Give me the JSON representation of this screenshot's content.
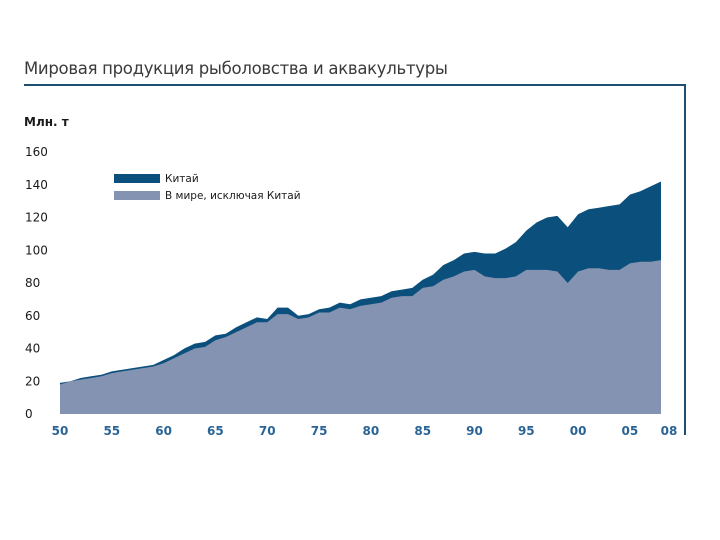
{
  "colors": {
    "china": "#0b4f7c",
    "world_ex_china": "#8593b2",
    "rule": "#1d4f73",
    "xtick": "#2a6496"
  },
  "chart_data": {
    "type": "area",
    "stacked": true,
    "title": "Мировая продукция рыболовства и аквакультуры",
    "ylabel": "Млн. т",
    "ylim": [
      0,
      160
    ],
    "xlim": [
      1950,
      2008
    ],
    "yticks": [
      "0",
      "20",
      "40",
      "60",
      "80",
      "100",
      "120",
      "140",
      "160"
    ],
    "xticks": [
      {
        "year": 1950,
        "label": "50"
      },
      {
        "year": 1955,
        "label": "55"
      },
      {
        "year": 1960,
        "label": "60"
      },
      {
        "year": 1965,
        "label": "65"
      },
      {
        "year": 1970,
        "label": "70"
      },
      {
        "year": 1975,
        "label": "75"
      },
      {
        "year": 1980,
        "label": "80"
      },
      {
        "year": 1985,
        "label": "85"
      },
      {
        "year": 1990,
        "label": "90"
      },
      {
        "year": 1995,
        "label": "95"
      },
      {
        "year": 2000,
        "label": "00"
      },
      {
        "year": 2005,
        "label": "05"
      },
      {
        "year": 2008,
        "label": "08"
      }
    ],
    "grid": false,
    "legend_position": "top-left",
    "x": [
      1950,
      1951,
      1952,
      1953,
      1954,
      1955,
      1956,
      1957,
      1958,
      1959,
      1960,
      1961,
      1962,
      1963,
      1964,
      1965,
      1966,
      1967,
      1968,
      1969,
      1970,
      1971,
      1972,
      1973,
      1974,
      1975,
      1976,
      1977,
      1978,
      1979,
      1980,
      1981,
      1982,
      1983,
      1984,
      1985,
      1986,
      1987,
      1988,
      1989,
      1990,
      1991,
      1992,
      1993,
      1994,
      1995,
      1996,
      1997,
      1998,
      1999,
      2000,
      2001,
      2002,
      2003,
      2004,
      2005,
      2006,
      2007,
      2008
    ],
    "series": [
      {
        "name": "В мире, исключая Китай",
        "color_key": "world_ex_china",
        "values": [
          18,
          20,
          21,
          22,
          23,
          25,
          26,
          27,
          28,
          29,
          31,
          34,
          37,
          40,
          41,
          45,
          47,
          50,
          53,
          56,
          56,
          61,
          61,
          58,
          59,
          62,
          62,
          65,
          64,
          66,
          67,
          68,
          71,
          72,
          72,
          77,
          78,
          82,
          84,
          87,
          88,
          84,
          83,
          83,
          84,
          88,
          88,
          88,
          87,
          80,
          87,
          89,
          89,
          88,
          88,
          92,
          93,
          93,
          94
        ],
        "stack_totals": [
          19,
          20,
          22,
          23,
          24,
          26,
          27,
          28,
          29,
          30,
          33,
          36,
          40,
          43,
          44,
          48,
          49,
          53,
          56,
          59,
          58,
          65,
          65,
          60,
          61,
          64,
          65,
          68,
          67,
          70,
          71,
          72,
          75,
          76,
          77,
          82,
          85,
          91,
          94,
          98,
          99,
          98,
          98,
          101,
          105,
          112,
          117,
          120,
          121,
          114,
          122,
          125,
          126,
          127,
          128,
          134,
          136,
          139,
          142
        ]
      },
      {
        "name": "Китай",
        "color_key": "china",
        "values": [
          1,
          0,
          1,
          1,
          1,
          1,
          1,
          1,
          1,
          1,
          2,
          2,
          3,
          3,
          3,
          3,
          2,
          3,
          3,
          3,
          2,
          4,
          4,
          2,
          2,
          2,
          3,
          3,
          3,
          4,
          4,
          4,
          4,
          4,
          5,
          5,
          7,
          9,
          10,
          11,
          11,
          14,
          15,
          18,
          21,
          24,
          29,
          32,
          34,
          34,
          35,
          36,
          37,
          39,
          40,
          42,
          43,
          46,
          48
        ]
      }
    ]
  }
}
